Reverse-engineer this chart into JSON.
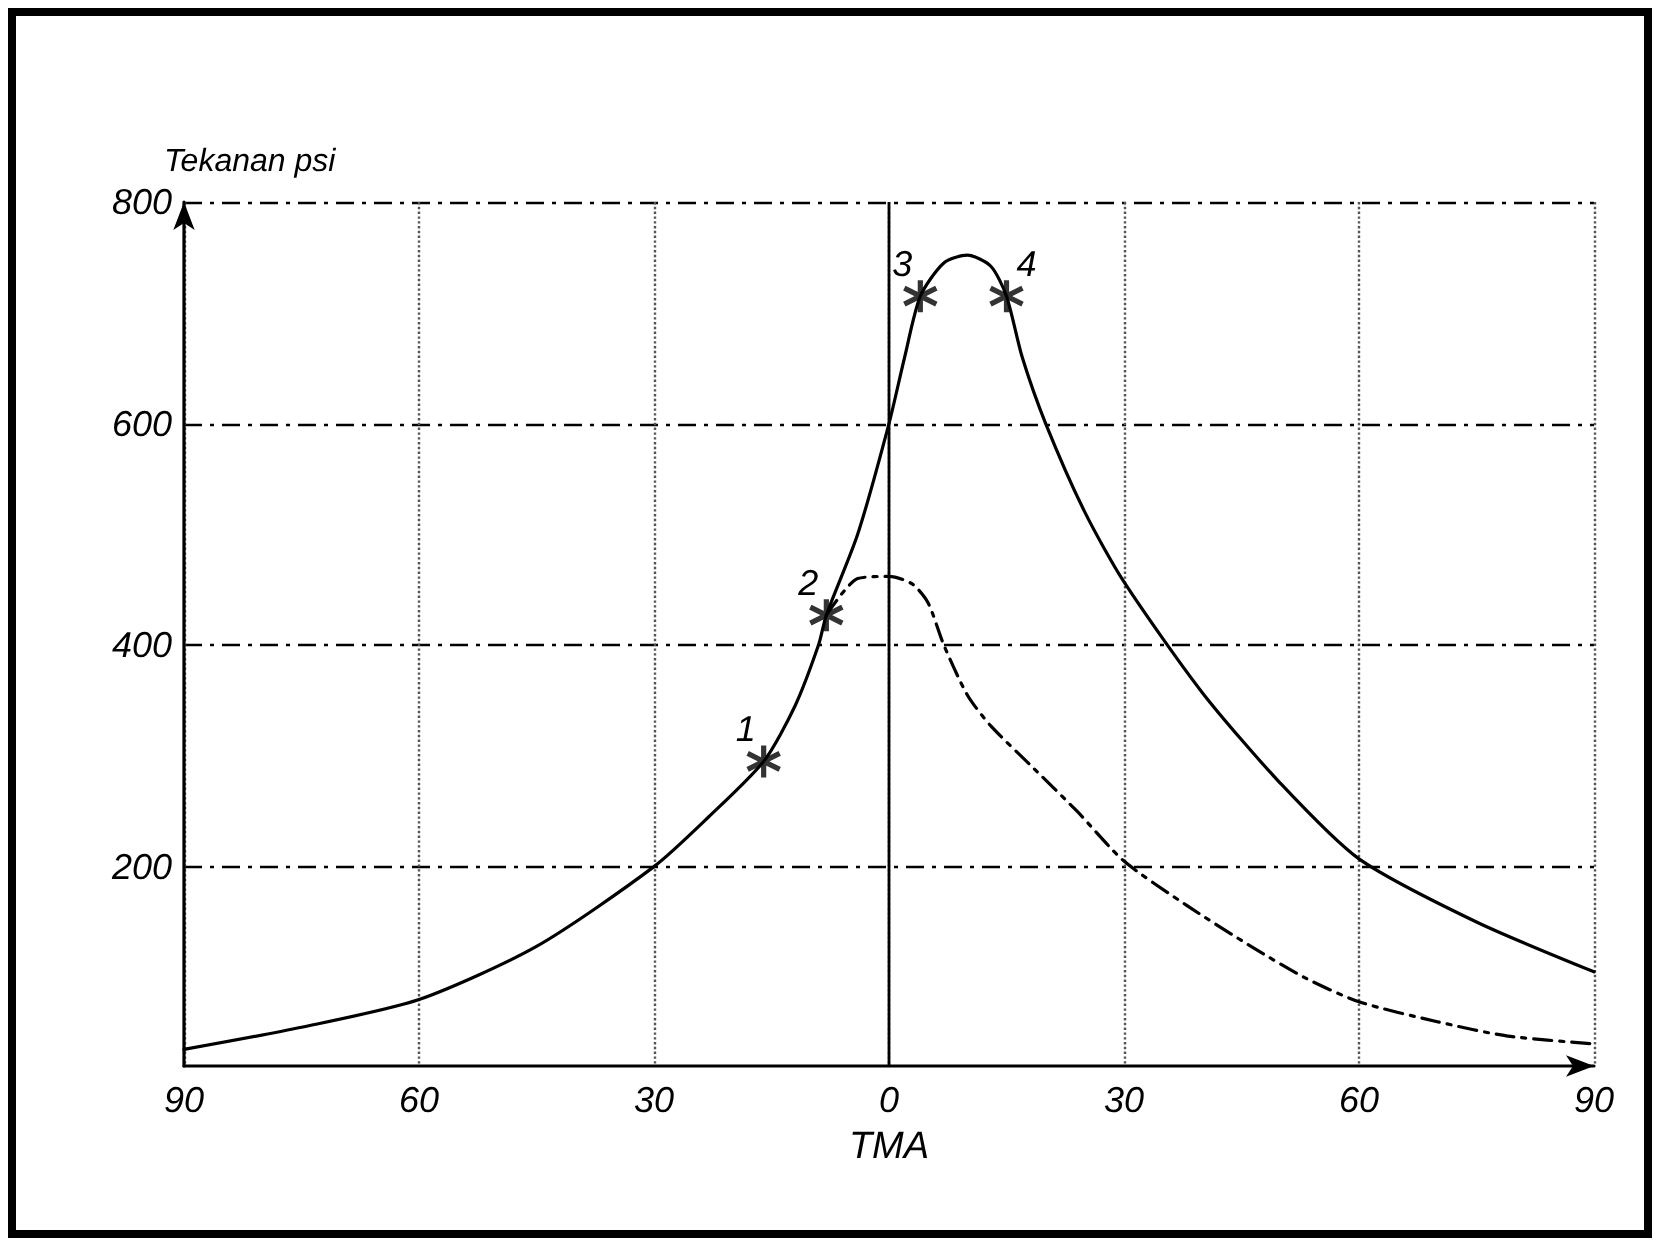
{
  "chart_data": {
    "type": "line",
    "xlabel": "TMA",
    "ylabel": "Tekanan psi",
    "xlim": [
      -90,
      90
    ],
    "xticks": [
      {
        "value": -90,
        "label": "90"
      },
      {
        "value": -60,
        "label": "60"
      },
      {
        "value": -30,
        "label": "30"
      },
      0,
      30,
      60,
      90
    ],
    "ylim": [
      20,
      800
    ],
    "yticks": [
      200,
      400,
      600,
      800
    ],
    "grid": true,
    "line_style": "solid",
    "marker": "none",
    "ref_lines": [
      {
        "axis": "x",
        "value": 0,
        "color": "#000000",
        "line_style": "solid"
      }
    ],
    "annotations": [
      {
        "text": "1",
        "x": -16,
        "y": 295
      },
      {
        "text": "2",
        "x": -8,
        "y": 427
      },
      {
        "text": "3",
        "x": 4,
        "y": 715
      },
      {
        "text": "4",
        "x": 15,
        "y": 715
      }
    ],
    "series": [
      {
        "color": "#000000",
        "x": [
          -90,
          -75,
          -60,
          -45,
          -30,
          -23,
          -16,
          -12,
          -9,
          -8,
          -4,
          0,
          2,
          4,
          7,
          10,
          13,
          15,
          17,
          20,
          25,
          30,
          40,
          50,
          60,
          75,
          90
        ],
        "values": [
          35,
          55,
          80,
          128,
          200,
          245,
          295,
          345,
          400,
          427,
          500,
          600,
          660,
          715,
          745,
          752,
          742,
          715,
          660,
          600,
          520,
          457,
          357,
          275,
          207,
          150,
          105
        ]
      },
      {
        "color": "#000000",
        "line_style": "dashed",
        "x": [
          -8,
          -4,
          0,
          3,
          5,
          7,
          10,
          13,
          18,
          24,
          30,
          38,
          46,
          53,
          60,
          70,
          79,
          90
        ],
        "values": [
          427,
          460,
          462,
          455,
          438,
          400,
          355,
          327,
          292,
          250,
          205,
          165,
          129,
          100,
          78,
          60,
          47,
          40
        ]
      },
      {
        "type": "scatter",
        "color": "#000000",
        "marker": "cross",
        "x": [
          -16,
          -8,
          4,
          15
        ],
        "values": [
          295,
          427,
          715,
          715
        ]
      }
    ]
  }
}
